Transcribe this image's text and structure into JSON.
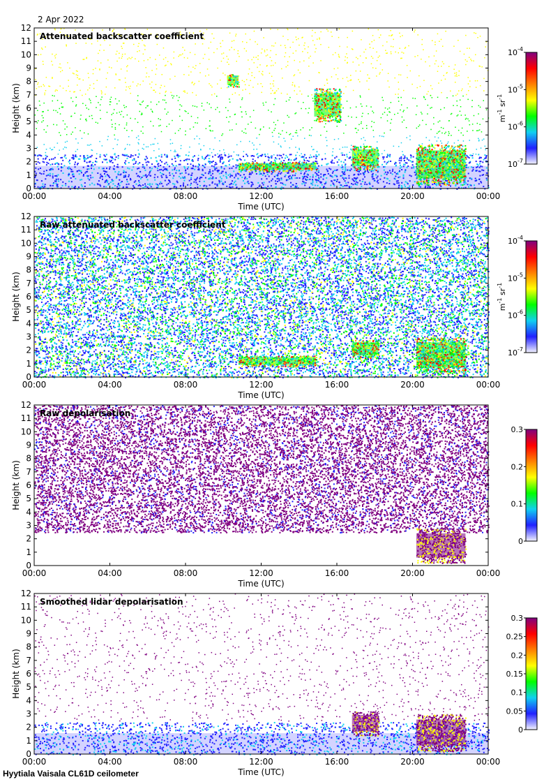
{
  "date": "2 Apr 2022",
  "footer": "Hyytiala Vaisala CL61D ceilometer",
  "chart_data": [
    {
      "type": "heatmap",
      "title": "Attenuated backscatter coefficient",
      "xlabel": "Time (UTC)",
      "ylabel": "Height (km)",
      "xticks": [
        "00:00",
        "04:00",
        "08:00",
        "12:00",
        "16:00",
        "20:00",
        "00:00"
      ],
      "yticks": [
        "0",
        "1",
        "2",
        "3",
        "4",
        "5",
        "6",
        "7",
        "8",
        "9",
        "10",
        "11",
        "12"
      ],
      "ylim": [
        0,
        12
      ],
      "xlim_hours": [
        0,
        24
      ],
      "colorbar": {
        "scale": "log",
        "ticks": [
          "10",
          "10",
          "10",
          "10"
        ],
        "tick_exponents": [
          "-7",
          "-6",
          "-5",
          "-4"
        ],
        "unit": "m",
        "unit_exp1": "-1",
        "unit_mid": " sr",
        "unit_exp2": "-1",
        "colors": [
          "#f4f4ff",
          "#2020ff",
          "#10d0f0",
          "#00ff00",
          "#ffff00",
          "#ff8000",
          "#ff0000",
          "#800080"
        ]
      },
      "features": [
        {
          "kind": "boundary-layer",
          "from": 0,
          "to": 24,
          "top": 2.6,
          "value": "1e-7"
        },
        {
          "kind": "cloud",
          "from": 10.8,
          "to": 14.9,
          "base": 1.3,
          "top": 2.0
        },
        {
          "kind": "cloud",
          "from": 16.8,
          "to": 18.2,
          "base": 1.4,
          "top": 3.2
        },
        {
          "kind": "cloud",
          "from": 20.2,
          "to": 22.8,
          "base": 0.3,
          "top": 3.3
        },
        {
          "kind": "cloud",
          "from": 10.2,
          "to": 10.8,
          "base": 7.6,
          "top": 8.6
        },
        {
          "kind": "cloud",
          "from": 14.8,
          "to": 16.2,
          "base": 5.0,
          "top": 7.5
        }
      ]
    },
    {
      "type": "heatmap",
      "title": "Raw attenuated backscatter coefficient",
      "xlabel": "Time (UTC)",
      "ylabel": "Height (km)",
      "xticks": [
        "00:00",
        "04:00",
        "08:00",
        "12:00",
        "16:00",
        "20:00",
        "00:00"
      ],
      "yticks": [
        "0",
        "1",
        "2",
        "3",
        "4",
        "5",
        "6",
        "7",
        "8",
        "9",
        "10",
        "11",
        "12"
      ],
      "ylim": [
        0,
        12
      ],
      "xlim_hours": [
        0,
        24
      ],
      "colorbar": {
        "scale": "log",
        "ticks": [
          "10",
          "10",
          "10",
          "10"
        ],
        "tick_exponents": [
          "-7",
          "-6",
          "-5",
          "-4"
        ],
        "unit": "m",
        "unit_exp1": "-1",
        "unit_mid": " sr",
        "unit_exp2": "-1",
        "colors": [
          "#f4f4ff",
          "#2020ff",
          "#10d0f0",
          "#00ff00",
          "#ffff00",
          "#ff8000",
          "#ff0000",
          "#800080"
        ]
      },
      "features": [
        {
          "kind": "noise",
          "from": 0,
          "to": 24,
          "base": 0,
          "top": 12
        },
        {
          "kind": "cloud",
          "from": 10.8,
          "to": 14.9,
          "base": 0.8,
          "top": 1.6
        },
        {
          "kind": "cloud",
          "from": 16.8,
          "to": 18.2,
          "base": 1.4,
          "top": 2.8
        },
        {
          "kind": "cloud",
          "from": 20.2,
          "to": 22.8,
          "base": 0.3,
          "top": 3.0
        }
      ]
    },
    {
      "type": "heatmap",
      "title": "Raw depolarisation",
      "xlabel": "Time (UTC)",
      "ylabel": "Height (km)",
      "xticks": [
        "00:00",
        "04:00",
        "08:00",
        "12:00",
        "16:00",
        "20:00",
        "00:00"
      ],
      "yticks": [
        "0",
        "1",
        "2",
        "3",
        "4",
        "5",
        "6",
        "7",
        "8",
        "9",
        "10",
        "11",
        "12"
      ],
      "ylim": [
        0,
        12
      ],
      "xlim_hours": [
        0,
        24
      ],
      "colorbar": {
        "scale": "linear",
        "ticks": [
          "0",
          "0.1",
          "0.2",
          "0.3"
        ],
        "colors": [
          "#f4f4ff",
          "#2020ff",
          "#10d0f0",
          "#00ff00",
          "#ffff00",
          "#ff8000",
          "#ff0000",
          "#800080"
        ]
      },
      "features": [
        {
          "kind": "noise",
          "from": 0,
          "to": 24,
          "base": 2.5,
          "top": 12
        },
        {
          "kind": "cloud",
          "from": 20.2,
          "to": 22.8,
          "base": 0.2,
          "top": 2.8
        }
      ]
    },
    {
      "type": "heatmap",
      "title": "Smoothed lidar depolarisation",
      "xlabel": "Time (UTC)",
      "ylabel": "Height (km)",
      "xticks": [
        "00:00",
        "04:00",
        "08:00",
        "12:00",
        "16:00",
        "20:00",
        "00:00"
      ],
      "yticks": [
        "0",
        "1",
        "2",
        "3",
        "4",
        "5",
        "6",
        "7",
        "8",
        "9",
        "10",
        "11",
        "12"
      ],
      "ylim": [
        0,
        12
      ],
      "xlim_hours": [
        0,
        24
      ],
      "colorbar": {
        "scale": "linear",
        "ticks": [
          "0",
          "0.05",
          "0.1",
          "0.15",
          "0.2",
          "0.25",
          "0.3"
        ],
        "colors": [
          "#f4f4ff",
          "#2020ff",
          "#10d0f0",
          "#00ff00",
          "#ffff00",
          "#ff8000",
          "#ff0000",
          "#800080"
        ]
      },
      "features": [
        {
          "kind": "boundary-layer",
          "from": 0,
          "to": 24,
          "top": 2.4,
          "value": "0.02"
        },
        {
          "kind": "cloud",
          "from": 16.8,
          "to": 18.2,
          "base": 1.4,
          "top": 3.2
        },
        {
          "kind": "cloud",
          "from": 20.2,
          "to": 22.8,
          "base": 0.2,
          "top": 3.0
        }
      ]
    }
  ]
}
